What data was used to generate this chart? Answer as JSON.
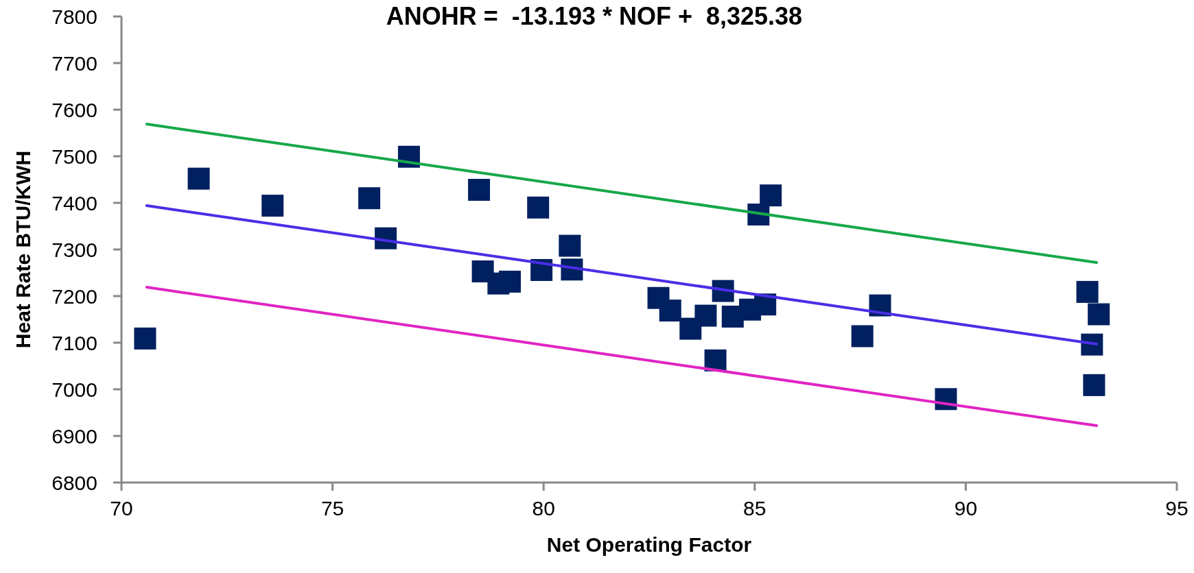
{
  "chart_data": {
    "type": "scatter",
    "title": "ANOHR =  -13.193 * NOF +  8,325.38",
    "xlabel": "Net Operating Factor",
    "ylabel": "Heat Rate BTU/KWH",
    "xlim": [
      70,
      95
    ],
    "xticks": [
      70,
      75,
      80,
      85,
      90,
      95
    ],
    "ylim": [
      6800,
      7800
    ],
    "yticks": [
      6800,
      6900,
      7000,
      7100,
      7200,
      7300,
      7400,
      7500,
      7600,
      7700,
      7800
    ],
    "grid": false,
    "marker": "square",
    "series": [
      {
        "color": "#002060",
        "x": [
          70.56,
          71.83,
          73.58,
          75.87,
          76.26,
          76.81,
          78.47,
          79.87,
          78.56,
          78.93,
          79.2,
          79.95,
          80.62,
          80.67,
          82.72,
          83.0,
          83.48,
          83.84,
          84.25,
          84.07,
          84.48,
          84.89,
          85.25,
          85.09,
          85.38,
          87.97,
          87.55,
          89.53,
          92.88,
          93.15,
          92.99,
          93.04
        ],
        "values": [
          7109,
          7452,
          7394,
          7410,
          7324,
          7499,
          7428,
          7390,
          7253,
          7227,
          7231,
          7256,
          7308,
          7257,
          7196,
          7169,
          7130,
          7158,
          7211,
          7062,
          7156,
          7171,
          7182,
          7375,
          7416,
          7180,
          7114,
          6979,
          7209,
          7161,
          7096,
          7009
        ]
      },
      {
        "type": "line",
        "color": "#16a84a",
        "marker": "none",
        "x": [
          70.6,
          93.1
        ],
        "values": [
          7569,
          7272
        ]
      },
      {
        "type": "line",
        "color": "#4a2ee6",
        "marker": "none",
        "x": [
          70.6,
          93.1
        ],
        "values": [
          7394,
          7097
        ]
      },
      {
        "type": "line",
        "color": "#e024c4",
        "marker": "none",
        "x": [
          70.6,
          93.1
        ],
        "values": [
          7219,
          6922
        ]
      }
    ]
  }
}
